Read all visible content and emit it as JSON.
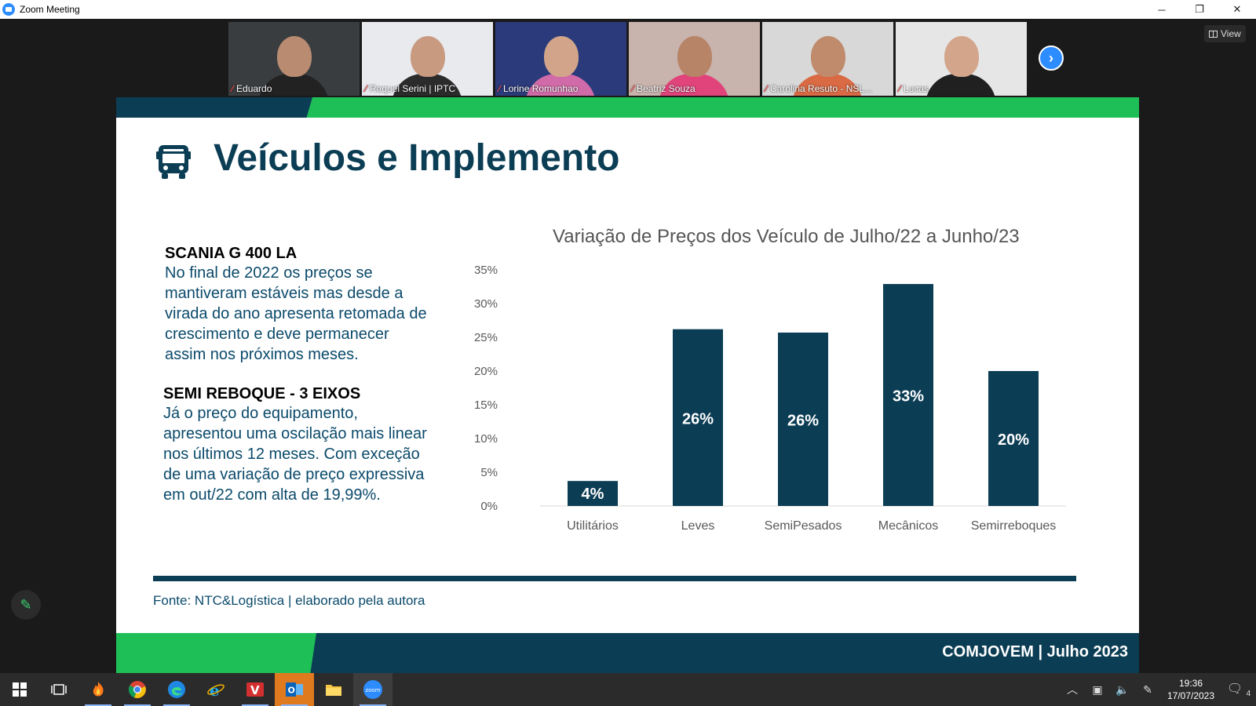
{
  "window": {
    "title": "Zoom Meeting",
    "minimize": "─",
    "restore": "❐",
    "close": "✕"
  },
  "gallery": {
    "participants": [
      {
        "name": "Eduardo",
        "bg": "#3a3d3f",
        "skin": "#b98c72",
        "shirt": "#222222"
      },
      {
        "name": "Raquel Serini | IPTC",
        "bg": "#e8eaee",
        "skin": "#c89a80",
        "shirt": "#2b2b2b"
      },
      {
        "name": "Lorine Romunhao",
        "bg": "#2a3a7a",
        "skin": "#d2a58a",
        "shirt": "#d16aa8"
      },
      {
        "name": "Beatriz Souza",
        "bg": "#c9b3ad",
        "skin": "#b78467",
        "shirt": "#e0447a"
      },
      {
        "name": "Carolina Resuto - NSL...",
        "bg": "#d8d8d8",
        "skin": "#c08a6c",
        "shirt": "#d96a44"
      },
      {
        "name": "Lucas",
        "bg": "#e6e6e6",
        "skin": "#d3a58a",
        "shirt": "#202020"
      }
    ],
    "next_label": "›",
    "view_label": "View"
  },
  "slide": {
    "title": "Veículos e Implemento",
    "block1": {
      "heading": "SCANIA G 400 LA",
      "text": "No final de 2022 os preços se mantiveram estáveis mas desde a virada do ano apresenta retomada de crescimento e deve permanecer assim nos próximos meses."
    },
    "block2": {
      "heading": "SEMI REBOQUE - 3 EIXOS",
      "text": "Já o preço do equipamento, apresentou uma oscilação mais linear nos últimos 12 meses. Com exceção de uma variação de preço expressiva em out/22 com alta de 19,99%."
    },
    "source": "Fonte: NTC&Logística | elaborado pela autora",
    "footer": "COMJOVEM |  Julho 2023"
  },
  "chart_data": {
    "type": "bar",
    "title": "Variação de Preços dos Veículo de Julho/22 a Junho/23",
    "categories": [
      "Utilitários",
      "Leves",
      "SemiPesados",
      "Mecânicos",
      "Semirreboques"
    ],
    "values": [
      4,
      26,
      26,
      33,
      20
    ],
    "value_labels": [
      "4%",
      "26%",
      "26%",
      "33%",
      "20%"
    ],
    "yticks": [
      "0%",
      "5%",
      "10%",
      "15%",
      "20%",
      "25%",
      "30%",
      "35%"
    ],
    "ylim": [
      0,
      35
    ],
    "bar_values_exact": [
      3.7,
      26.2,
      25.7,
      32.9,
      20.0
    ],
    "bar_color": "#0b3d54",
    "grid": false
  },
  "taskbar": {
    "time": "19:36",
    "date": "17/07/2023",
    "notification_count": "4"
  },
  "colors": {
    "accent_green": "#1fbf57",
    "navy": "#0b3d54",
    "zoom_blue": "#2d8cff"
  }
}
